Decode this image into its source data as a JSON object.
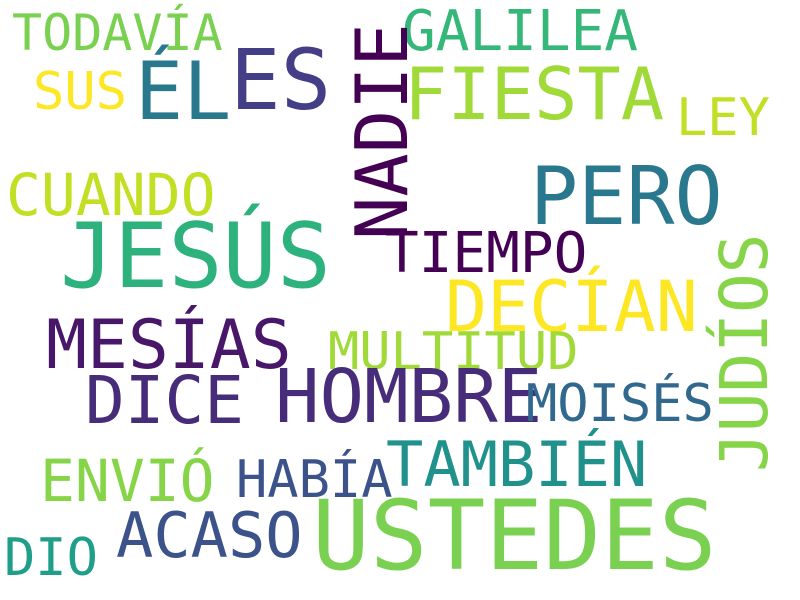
{
  "words": [
    {
      "text": "TODAVÍA",
      "color": "#7ad151"
    },
    {
      "text": "SUS",
      "color": "#fde725"
    },
    {
      "text": "ÉL",
      "color": "#2a788e"
    },
    {
      "text": "ES",
      "color": "#433e85"
    },
    {
      "text": "GALILEA",
      "color": "#35b779"
    },
    {
      "text": "FIESTA",
      "color": "#a0da39"
    },
    {
      "text": "LEY",
      "color": "#c2df23"
    },
    {
      "text": "CUANDO",
      "color": "#c2df23"
    },
    {
      "text": "PERO",
      "color": "#2a788e"
    },
    {
      "text": "JESÚS",
      "color": "#2db27d"
    },
    {
      "text": "TIEMPO",
      "color": "#440154"
    },
    {
      "text": "DECÍAN",
      "color": "#fde725"
    },
    {
      "text": "MESÍAS",
      "color": "#481769"
    },
    {
      "text": "MULTITUD",
      "color": "#a0da39"
    },
    {
      "text": "DICE",
      "color": "#472c7a"
    },
    {
      "text": "HOMBRE",
      "color": "#472c7a"
    },
    {
      "text": "MOISÉS",
      "color": "#31688e"
    },
    {
      "text": "TAMBIÉN",
      "color": "#21918c"
    },
    {
      "text": "ENVIÓ",
      "color": "#86d549"
    },
    {
      "text": "HABÍA",
      "color": "#3b528b"
    },
    {
      "text": "ACASO",
      "color": "#3b528b"
    },
    {
      "text": "USTEDES",
      "color": "#7ad151"
    },
    {
      "text": "DIO",
      "color": "#1f9e89"
    },
    {
      "text": "NADIE",
      "color": "#440154"
    },
    {
      "text": "JUDÍOS",
      "color": "#86d549"
    }
  ]
}
